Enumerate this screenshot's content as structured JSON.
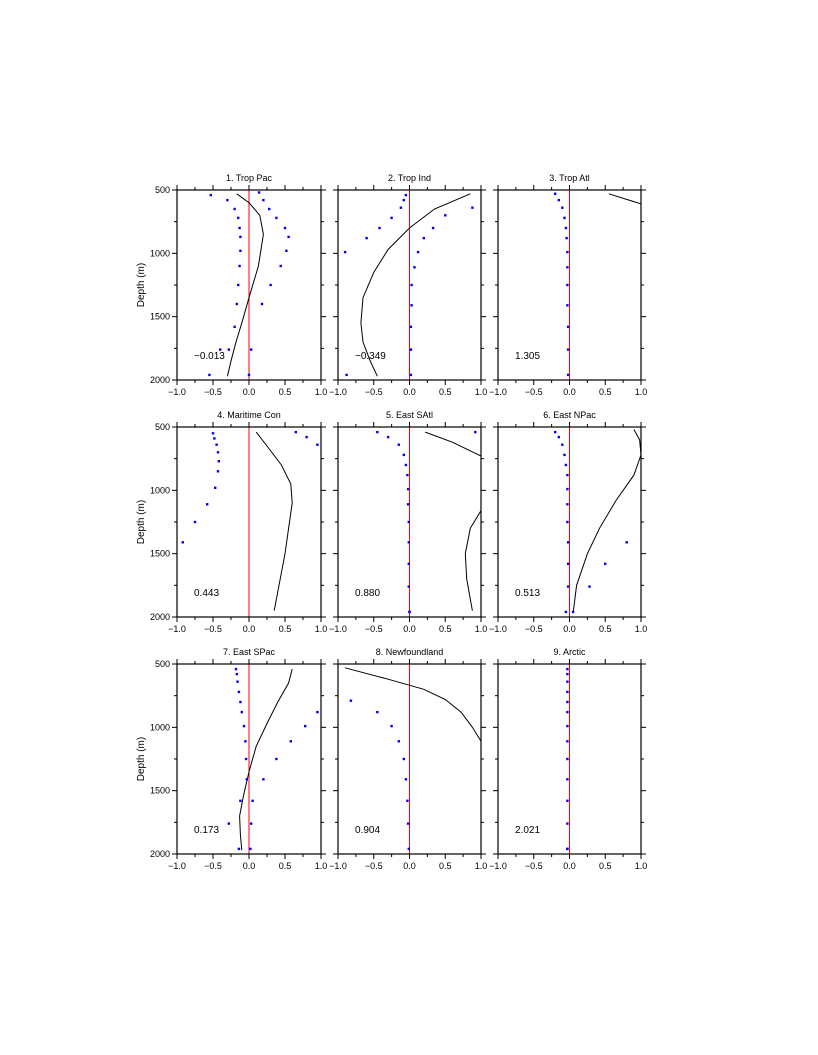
{
  "figure": {
    "ylabel": "Depth (m)",
    "x_ticks": [
      "−1.0",
      "−0.5",
      "0.0",
      "0.5",
      "1.0"
    ],
    "y_ticks": [
      "500",
      "1000",
      "1500",
      "2000"
    ],
    "line_color": "#000000",
    "dot_color": "#0000ff",
    "zero_line_color": "#ff0000"
  },
  "chart_data": [
    {
      "type": "line",
      "title": "1. Trop Pac",
      "annotation": "−0.013",
      "xlim": [
        -1,
        1
      ],
      "ylim": [
        2000,
        500
      ],
      "y_reversed": true,
      "series": [
        {
          "kind": "line",
          "x": [
            -0.17,
            0.0,
            0.15,
            0.2,
            0.13,
            0.0,
            -0.1,
            -0.18,
            -0.25,
            -0.3
          ],
          "y": [
            530,
            600,
            700,
            850,
            1100,
            1350,
            1550,
            1700,
            1850,
            1970
          ]
        },
        {
          "kind": "dots",
          "x": [
            -0.53,
            0.14,
            0.2,
            0.28,
            0.38,
            0.5,
            0.55,
            0.52,
            0.44,
            0.3,
            0.18,
            0.03,
            0.0
          ],
          "y": [
            540,
            520,
            580,
            650,
            720,
            800,
            870,
            980,
            1100,
            1250,
            1400,
            1760,
            1960
          ]
        },
        {
          "kind": "dots",
          "x": [
            -0.3,
            -0.2,
            -0.15,
            -0.13,
            -0.12,
            -0.12,
            -0.13,
            -0.15,
            -0.17,
            -0.2,
            -0.28,
            -0.4,
            -0.55
          ],
          "y": [
            580,
            650,
            720,
            800,
            870,
            980,
            1100,
            1250,
            1400,
            1580,
            1760,
            1760,
            1960
          ]
        }
      ]
    },
    {
      "type": "line",
      "title": "2. Trop Ind",
      "annotation": "−0.349",
      "xlim": [
        -1,
        1
      ],
      "ylim": [
        2000,
        500
      ],
      "y_reversed": true,
      "series": [
        {
          "kind": "line",
          "x": [
            0.85,
            0.35,
            0.0,
            -0.3,
            -0.5,
            -0.65,
            -0.68,
            -0.65,
            -0.55,
            -0.45
          ],
          "y": [
            530,
            650,
            800,
            970,
            1150,
            1350,
            1550,
            1700,
            1850,
            1970
          ]
        },
        {
          "kind": "dots",
          "x": [
            -0.05,
            -0.08,
            -0.12,
            -0.25,
            -0.42,
            -0.6,
            -0.9,
            -0.88
          ],
          "y": [
            540,
            580,
            640,
            720,
            800,
            880,
            990,
            1960
          ]
        },
        {
          "kind": "dots",
          "x": [
            0.88,
            0.5,
            0.33,
            0.2,
            0.12,
            0.07,
            0.03,
            0.03,
            0.02,
            0.02,
            0.02,
            0.02
          ],
          "y": [
            640,
            700,
            800,
            880,
            990,
            1110,
            1250,
            1410,
            1580,
            1760,
            1760,
            1960
          ]
        }
      ]
    },
    {
      "type": "line",
      "title": "3. Trop Atl",
      "annotation": "1.305",
      "xlim": [
        -1,
        1
      ],
      "ylim": [
        2000,
        500
      ],
      "y_reversed": true,
      "series": [
        {
          "kind": "line",
          "x": [
            0.55,
            1.0
          ],
          "y": [
            530,
            610
          ]
        },
        {
          "kind": "dots",
          "x": [
            -0.2,
            -0.15,
            -0.1,
            -0.07,
            -0.05,
            -0.04,
            -0.03,
            -0.03,
            -0.03,
            -0.03,
            -0.02,
            -0.02,
            -0.02
          ],
          "y": [
            530,
            580,
            640,
            720,
            800,
            880,
            990,
            1110,
            1250,
            1410,
            1580,
            1760,
            1960
          ]
        }
      ]
    },
    {
      "type": "line",
      "title": "4. Maritime Con",
      "annotation": "0.443",
      "xlim": [
        -1,
        1
      ],
      "ylim": [
        2000,
        500
      ],
      "y_reversed": true,
      "series": [
        {
          "kind": "line",
          "x": [
            0.1,
            0.25,
            0.45,
            0.58,
            0.6,
            0.55,
            0.5,
            0.45,
            0.4,
            0.35
          ],
          "y": [
            540,
            650,
            800,
            950,
            1100,
            1300,
            1500,
            1650,
            1800,
            1950
          ]
        },
        {
          "kind": "dots",
          "x": [
            0.65,
            0.8,
            0.95
          ],
          "y": [
            540,
            580,
            640
          ]
        },
        {
          "kind": "dots",
          "x": [
            -0.5,
            -0.48,
            -0.45,
            -0.43,
            -0.42,
            -0.43,
            -0.47,
            -0.58,
            -0.75,
            -0.92
          ],
          "y": [
            550,
            590,
            640,
            700,
            770,
            850,
            980,
            1110,
            1250,
            1410
          ]
        }
      ]
    },
    {
      "type": "line",
      "title": "5. East SAtl",
      "annotation": "0.880",
      "xlim": [
        -1,
        1
      ],
      "ylim": [
        2000,
        500
      ],
      "y_reversed": true,
      "series": [
        {
          "kind": "line",
          "x": [
            0.22,
            0.6,
            1.0
          ],
          "y": [
            540,
            620,
            730
          ]
        },
        {
          "kind": "line",
          "x": [
            1.0,
            0.85,
            0.78,
            0.8,
            0.88
          ],
          "y": [
            1160,
            1300,
            1500,
            1700,
            1950
          ]
        },
        {
          "kind": "dots",
          "x": [
            -0.45,
            -0.3,
            -0.15,
            -0.08,
            -0.05,
            -0.03,
            -0.02,
            -0.02,
            -0.01,
            -0.01,
            -0.01,
            -0.01,
            0.0,
            0.0
          ],
          "y": [
            540,
            580,
            640,
            720,
            800,
            880,
            990,
            1110,
            1250,
            1410,
            1580,
            1760,
            1960,
            1960
          ]
        },
        {
          "kind": "dots",
          "x": [
            0.92
          ],
          "y": [
            540
          ]
        }
      ]
    },
    {
      "type": "line",
      "title": "6. East NPac",
      "annotation": "0.513",
      "xlim": [
        -1,
        1
      ],
      "ylim": [
        2000,
        500
      ],
      "y_reversed": true,
      "series": [
        {
          "kind": "line",
          "x": [
            0.9,
            0.98,
            1.0,
            0.9,
            0.65,
            0.42,
            0.25,
            0.1,
            0.05
          ],
          "y": [
            520,
            600,
            720,
            880,
            1080,
            1300,
            1500,
            1750,
            1970
          ]
        },
        {
          "kind": "dots",
          "x": [
            -0.2,
            -0.15,
            -0.1,
            -0.07,
            -0.05,
            -0.03,
            -0.03,
            -0.03,
            -0.03,
            -0.02,
            -0.02,
            -0.02,
            -0.05
          ],
          "y": [
            540,
            580,
            640,
            720,
            800,
            880,
            990,
            1110,
            1250,
            1410,
            1580,
            1760,
            1960
          ]
        },
        {
          "kind": "dots",
          "x": [
            0.8,
            0.5,
            0.28,
            0.05
          ],
          "y": [
            1410,
            1580,
            1760,
            1960
          ]
        }
      ]
    },
    {
      "type": "line",
      "title": "7. East SPac",
      "annotation": "0.173",
      "xlim": [
        -1,
        1
      ],
      "ylim": [
        2000,
        500
      ],
      "y_reversed": true,
      "series": [
        {
          "kind": "line",
          "x": [
            0.6,
            0.55,
            0.4,
            0.25,
            0.1,
            0.0,
            -0.08,
            -0.13,
            -0.12,
            -0.1
          ],
          "y": [
            540,
            650,
            800,
            970,
            1150,
            1350,
            1550,
            1700,
            1850,
            1970
          ]
        },
        {
          "kind": "dots",
          "x": [
            -0.18,
            -0.17,
            -0.16,
            -0.14,
            -0.12,
            -0.1,
            -0.07,
            -0.05,
            -0.04,
            -0.03,
            -0.12,
            -0.28,
            -0.14
          ],
          "y": [
            540,
            580,
            640,
            720,
            800,
            880,
            990,
            1110,
            1250,
            1410,
            1580,
            1760,
            1960
          ]
        },
        {
          "kind": "dots",
          "x": [
            0.95,
            0.78,
            0.58,
            0.38,
            0.2,
            0.05,
            0.03,
            0.02
          ],
          "y": [
            880,
            990,
            1110,
            1250,
            1410,
            1580,
            1760,
            1960
          ]
        }
      ]
    },
    {
      "type": "line",
      "title": "8. Newfoundland",
      "annotation": "0.904",
      "xlim": [
        -1,
        1
      ],
      "ylim": [
        2000,
        500
      ],
      "y_reversed": true,
      "series": [
        {
          "kind": "line",
          "x": [
            -0.9,
            -0.3,
            0.2,
            0.5,
            0.72,
            0.88,
            1.0
          ],
          "y": [
            530,
            620,
            700,
            780,
            880,
            1000,
            1110
          ]
        },
        {
          "kind": "dots",
          "x": [
            -0.82,
            -0.45,
            -0.25,
            -0.15,
            -0.08,
            -0.05,
            -0.03,
            -0.02,
            -0.01
          ],
          "y": [
            790,
            880,
            990,
            1110,
            1250,
            1410,
            1580,
            1760,
            1960
          ]
        }
      ]
    },
    {
      "type": "line",
      "title": "9. Arctic",
      "annotation": "2.021",
      "xlim": [
        -1,
        1
      ],
      "ylim": [
        2000,
        500
      ],
      "y_reversed": true,
      "series": [
        {
          "kind": "dots",
          "x": [
            -0.03,
            -0.03,
            -0.03,
            -0.03,
            -0.03,
            -0.03,
            -0.03,
            -0.03,
            -0.03,
            -0.03,
            -0.03,
            -0.03,
            -0.03,
            -0.03
          ],
          "y": [
            540,
            580,
            640,
            720,
            800,
            880,
            990,
            1110,
            1250,
            1410,
            1580,
            1760,
            1960,
            1960
          ]
        }
      ]
    }
  ]
}
